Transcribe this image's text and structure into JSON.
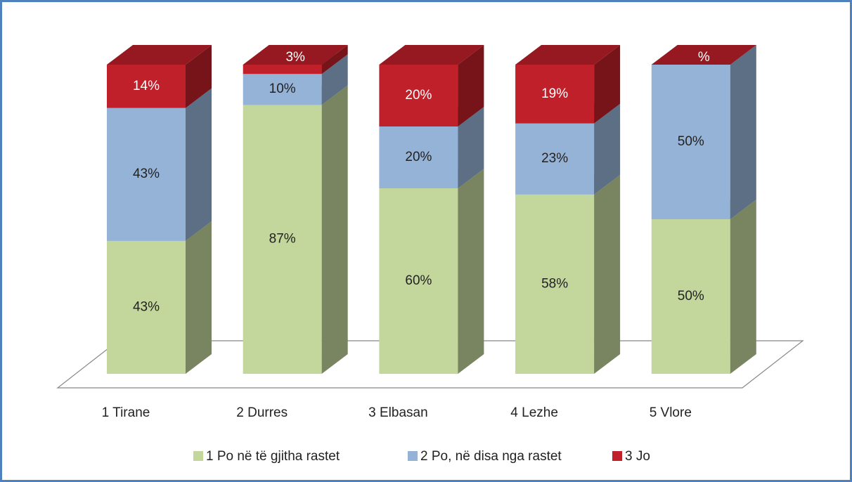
{
  "chart_data": {
    "type": "bar3d_stacked",
    "categories": [
      "1 Tirane",
      "2 Durres",
      "3 Elbasan",
      "4 Lezhe",
      "5 Vlore"
    ],
    "series": [
      {
        "name": "1 Po në të gjitha rastet",
        "color": "#c3d69b",
        "values": [
          43,
          87,
          60,
          58,
          50
        ],
        "value_labels": [
          "43%",
          "87%",
          "60%",
          "58%",
          "50%"
        ]
      },
      {
        "name": "2 Po, në disa nga rastet",
        "color": "#95b3d7",
        "values": [
          43,
          10,
          20,
          23,
          50
        ],
        "value_labels": [
          "43%",
          "10%",
          "20%",
          "23%",
          "50%"
        ]
      },
      {
        "name": "3 Jo",
        "color": "#c0202a",
        "values": [
          14,
          3,
          20,
          19,
          0
        ],
        "value_labels": [
          "14%",
          "3%",
          "20%",
          "19%",
          "%"
        ]
      }
    ]
  }
}
